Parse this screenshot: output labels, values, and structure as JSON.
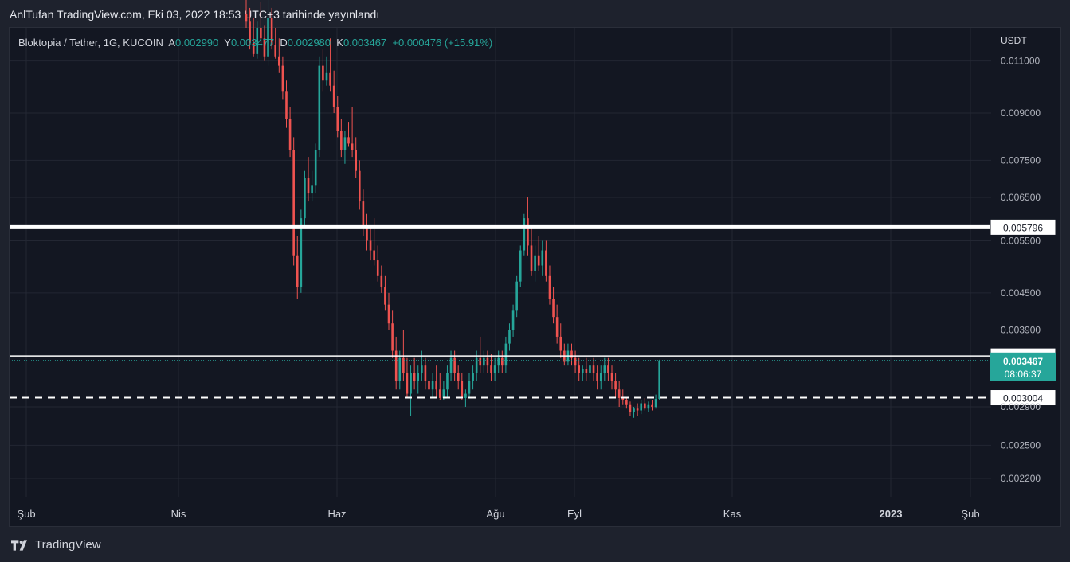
{
  "header": {
    "title": "AnlTufan TradingView.com, Eki 03, 2022 18:53 UTC+3 tarihinde yayınlandı"
  },
  "legend": {
    "symbol": "Bloktopia / Tether, 1G, KUCOIN",
    "open_label": "A",
    "open": "0.002990",
    "high_label": "Y",
    "high": "0.003477",
    "low_label": "D",
    "low": "0.002980",
    "close_label": "K",
    "close": "0.003467",
    "change": "+0.000476 (+15.91%)"
  },
  "footer": {
    "brand": "TradingView"
  },
  "colors": {
    "up": "#26a69a",
    "down": "#ef5350",
    "background": "#131722",
    "grid": "#232733",
    "level": "#ffffff"
  },
  "chart_data": {
    "type": "candlestick",
    "title": "Bloktopia / Tether, 1G, KUCOIN",
    "currency": "USDT",
    "y_scale": "log",
    "ylim": [
      0.00205,
      0.0125
    ],
    "y_ticks": [
      "0.011000",
      "0.009000",
      "0.007500",
      "0.006500",
      "0.005500",
      "0.004500",
      "0.003900",
      "0.002900",
      "0.002500",
      "0.002200"
    ],
    "x_ticks": [
      "Şub",
      "Nis",
      "Haz",
      "Ağu",
      "Eyl",
      "Kas",
      "2023",
      "Şub"
    ],
    "levels": [
      {
        "value": 0.005796,
        "label": "0.005796",
        "style": "solid-thick"
      },
      {
        "value": 0.003528,
        "label": "0.003528",
        "style": "solid"
      },
      {
        "value": 0.003004,
        "label": "0.003004",
        "style": "dashed"
      }
    ],
    "last_price": {
      "value": 0.003467,
      "label": "0.003467",
      "countdown": "08:06:37"
    },
    "candles": [
      {
        "o": 0.0132,
        "h": 0.0145,
        "l": 0.0125,
        "c": 0.0128
      },
      {
        "o": 0.0128,
        "h": 0.0135,
        "l": 0.0115,
        "c": 0.0118
      },
      {
        "o": 0.0118,
        "h": 0.013,
        "l": 0.0112,
        "c": 0.0113
      },
      {
        "o": 0.0113,
        "h": 0.0128,
        "l": 0.0111,
        "c": 0.0125
      },
      {
        "o": 0.0125,
        "h": 0.0138,
        "l": 0.0118,
        "c": 0.012
      },
      {
        "o": 0.012,
        "h": 0.0126,
        "l": 0.011,
        "c": 0.0112
      },
      {
        "o": 0.0112,
        "h": 0.014,
        "l": 0.0108,
        "c": 0.013
      },
      {
        "o": 0.013,
        "h": 0.0135,
        "l": 0.0115,
        "c": 0.0117
      },
      {
        "o": 0.0117,
        "h": 0.0125,
        "l": 0.0111,
        "c": 0.0112
      },
      {
        "o": 0.0112,
        "h": 0.012,
        "l": 0.0105,
        "c": 0.0108
      },
      {
        "o": 0.0108,
        "h": 0.0112,
        "l": 0.0095,
        "c": 0.0098
      },
      {
        "o": 0.0098,
        "h": 0.0102,
        "l": 0.0085,
        "c": 0.0088
      },
      {
        "o": 0.0088,
        "h": 0.0092,
        "l": 0.0076,
        "c": 0.0078
      },
      {
        "o": 0.0078,
        "h": 0.0082,
        "l": 0.005,
        "c": 0.0052
      },
      {
        "o": 0.0052,
        "h": 0.0056,
        "l": 0.0044,
        "c": 0.0046
      },
      {
        "o": 0.0046,
        "h": 0.0062,
        "l": 0.0045,
        "c": 0.006
      },
      {
        "o": 0.006,
        "h": 0.0072,
        "l": 0.0058,
        "c": 0.007
      },
      {
        "o": 0.007,
        "h": 0.0076,
        "l": 0.0064,
        "c": 0.0066
      },
      {
        "o": 0.0066,
        "h": 0.0072,
        "l": 0.0064,
        "c": 0.0068
      },
      {
        "o": 0.0068,
        "h": 0.008,
        "l": 0.0066,
        "c": 0.0078
      },
      {
        "o": 0.0078,
        "h": 0.0112,
        "l": 0.0076,
        "c": 0.0108
      },
      {
        "o": 0.0108,
        "h": 0.0115,
        "l": 0.0098,
        "c": 0.0102
      },
      {
        "o": 0.0102,
        "h": 0.0112,
        "l": 0.01,
        "c": 0.0105
      },
      {
        "o": 0.0105,
        "h": 0.012,
        "l": 0.0098,
        "c": 0.01
      },
      {
        "o": 0.01,
        "h": 0.0106,
        "l": 0.009,
        "c": 0.0092
      },
      {
        "o": 0.0092,
        "h": 0.0096,
        "l": 0.0082,
        "c": 0.0084
      },
      {
        "o": 0.0084,
        "h": 0.0088,
        "l": 0.0076,
        "c": 0.0078
      },
      {
        "o": 0.0078,
        "h": 0.0084,
        "l": 0.0074,
        "c": 0.0082
      },
      {
        "o": 0.0082,
        "h": 0.0087,
        "l": 0.0079,
        "c": 0.008
      },
      {
        "o": 0.008,
        "h": 0.0092,
        "l": 0.0076,
        "c": 0.0078
      },
      {
        "o": 0.0078,
        "h": 0.0082,
        "l": 0.007,
        "c": 0.0072
      },
      {
        "o": 0.0072,
        "h": 0.0075,
        "l": 0.0062,
        "c": 0.0064
      },
      {
        "o": 0.0064,
        "h": 0.0067,
        "l": 0.0056,
        "c": 0.0058
      },
      {
        "o": 0.0058,
        "h": 0.0061,
        "l": 0.0053,
        "c": 0.0055
      },
      {
        "o": 0.0055,
        "h": 0.0058,
        "l": 0.0051,
        "c": 0.0053
      },
      {
        "o": 0.0053,
        "h": 0.006,
        "l": 0.005,
        "c": 0.0051
      },
      {
        "o": 0.0051,
        "h": 0.0054,
        "l": 0.0047,
        "c": 0.0048
      },
      {
        "o": 0.0048,
        "h": 0.005,
        "l": 0.0045,
        "c": 0.0046
      },
      {
        "o": 0.0046,
        "h": 0.0048,
        "l": 0.0042,
        "c": 0.0043
      },
      {
        "o": 0.0043,
        "h": 0.0045,
        "l": 0.0039,
        "c": 0.004
      },
      {
        "o": 0.004,
        "h": 0.0042,
        "l": 0.0035,
        "c": 0.0036
      },
      {
        "o": 0.0036,
        "h": 0.0038,
        "l": 0.0031,
        "c": 0.0032
      },
      {
        "o": 0.0032,
        "h": 0.0036,
        "l": 0.0031,
        "c": 0.0035
      },
      {
        "o": 0.0035,
        "h": 0.0039,
        "l": 0.0032,
        "c": 0.0033
      },
      {
        "o": 0.0033,
        "h": 0.0035,
        "l": 0.003,
        "c": 0.00305
      },
      {
        "o": 0.00305,
        "h": 0.0034,
        "l": 0.0028,
        "c": 0.0033
      },
      {
        "o": 0.0033,
        "h": 0.0035,
        "l": 0.0031,
        "c": 0.0032
      },
      {
        "o": 0.0032,
        "h": 0.0034,
        "l": 0.00305,
        "c": 0.0033
      },
      {
        "o": 0.0033,
        "h": 0.0036,
        "l": 0.0032,
        "c": 0.0034
      },
      {
        "o": 0.0034,
        "h": 0.0035,
        "l": 0.0031,
        "c": 0.0032
      },
      {
        "o": 0.0032,
        "h": 0.0034,
        "l": 0.003,
        "c": 0.0031
      },
      {
        "o": 0.0031,
        "h": 0.0033,
        "l": 0.003,
        "c": 0.0032
      },
      {
        "o": 0.0032,
        "h": 0.0034,
        "l": 0.003,
        "c": 0.0031
      },
      {
        "o": 0.0031,
        "h": 0.0033,
        "l": 0.00298,
        "c": 0.003
      },
      {
        "o": 0.003,
        "h": 0.0032,
        "l": 0.00298,
        "c": 0.0031
      },
      {
        "o": 0.0031,
        "h": 0.0034,
        "l": 0.003,
        "c": 0.0033
      },
      {
        "o": 0.0033,
        "h": 0.0036,
        "l": 0.0032,
        "c": 0.0035
      },
      {
        "o": 0.0035,
        "h": 0.0036,
        "l": 0.0032,
        "c": 0.0033
      },
      {
        "o": 0.0033,
        "h": 0.0034,
        "l": 0.0031,
        "c": 0.0032
      },
      {
        "o": 0.0032,
        "h": 0.0033,
        "l": 0.00298,
        "c": 0.003
      },
      {
        "o": 0.003,
        "h": 0.0031,
        "l": 0.0029,
        "c": 0.00305
      },
      {
        "o": 0.00305,
        "h": 0.0033,
        "l": 0.003,
        "c": 0.0032
      },
      {
        "o": 0.0032,
        "h": 0.0034,
        "l": 0.0031,
        "c": 0.0033
      },
      {
        "o": 0.0033,
        "h": 0.0036,
        "l": 0.0032,
        "c": 0.0035
      },
      {
        "o": 0.0035,
        "h": 0.0038,
        "l": 0.0033,
        "c": 0.0034
      },
      {
        "o": 0.0034,
        "h": 0.0036,
        "l": 0.0033,
        "c": 0.0035
      },
      {
        "o": 0.0035,
        "h": 0.0036,
        "l": 0.0033,
        "c": 0.0034
      },
      {
        "o": 0.0034,
        "h": 0.00355,
        "l": 0.0032,
        "c": 0.0033
      },
      {
        "o": 0.0033,
        "h": 0.0035,
        "l": 0.0032,
        "c": 0.0034
      },
      {
        "o": 0.0034,
        "h": 0.0036,
        "l": 0.0033,
        "c": 0.0035
      },
      {
        "o": 0.0035,
        "h": 0.0036,
        "l": 0.0033,
        "c": 0.0034
      },
      {
        "o": 0.0034,
        "h": 0.0038,
        "l": 0.0033,
        "c": 0.0037
      },
      {
        "o": 0.0037,
        "h": 0.004,
        "l": 0.0036,
        "c": 0.0039
      },
      {
        "o": 0.0039,
        "h": 0.0043,
        "l": 0.0038,
        "c": 0.0042
      },
      {
        "o": 0.0042,
        "h": 0.0048,
        "l": 0.0041,
        "c": 0.0047
      },
      {
        "o": 0.0047,
        "h": 0.0054,
        "l": 0.0046,
        "c": 0.0053
      },
      {
        "o": 0.0053,
        "h": 0.0061,
        "l": 0.0052,
        "c": 0.006
      },
      {
        "o": 0.006,
        "h": 0.0065,
        "l": 0.0052,
        "c": 0.0054
      },
      {
        "o": 0.0054,
        "h": 0.0058,
        "l": 0.0048,
        "c": 0.0049
      },
      {
        "o": 0.0049,
        "h": 0.0054,
        "l": 0.0047,
        "c": 0.0052
      },
      {
        "o": 0.0052,
        "h": 0.0056,
        "l": 0.0049,
        "c": 0.005
      },
      {
        "o": 0.005,
        "h": 0.0055,
        "l": 0.0048,
        "c": 0.0053
      },
      {
        "o": 0.0053,
        "h": 0.0055,
        "l": 0.0047,
        "c": 0.0048
      },
      {
        "o": 0.0048,
        "h": 0.005,
        "l": 0.0043,
        "c": 0.0044
      },
      {
        "o": 0.0044,
        "h": 0.0046,
        "l": 0.004,
        "c": 0.0041
      },
      {
        "o": 0.0041,
        "h": 0.0043,
        "l": 0.0037,
        "c": 0.0038
      },
      {
        "o": 0.0038,
        "h": 0.004,
        "l": 0.0035,
        "c": 0.0036
      },
      {
        "o": 0.0036,
        "h": 0.0037,
        "l": 0.0034,
        "c": 0.00345
      },
      {
        "o": 0.00345,
        "h": 0.0037,
        "l": 0.0034,
        "c": 0.0036
      },
      {
        "o": 0.0036,
        "h": 0.0037,
        "l": 0.0034,
        "c": 0.0035
      },
      {
        "o": 0.0035,
        "h": 0.0036,
        "l": 0.0033,
        "c": 0.0034
      },
      {
        "o": 0.0034,
        "h": 0.0035,
        "l": 0.0032,
        "c": 0.0033
      },
      {
        "o": 0.0033,
        "h": 0.0034,
        "l": 0.0032,
        "c": 0.00335
      },
      {
        "o": 0.00335,
        "h": 0.0035,
        "l": 0.0032,
        "c": 0.0033
      },
      {
        "o": 0.0033,
        "h": 0.0034,
        "l": 0.0032,
        "c": 0.0034
      },
      {
        "o": 0.0034,
        "h": 0.0035,
        "l": 0.0032,
        "c": 0.0033
      },
      {
        "o": 0.0033,
        "h": 0.0034,
        "l": 0.0031,
        "c": 0.0032
      },
      {
        "o": 0.0032,
        "h": 0.0034,
        "l": 0.0031,
        "c": 0.0033
      },
      {
        "o": 0.0033,
        "h": 0.0035,
        "l": 0.0032,
        "c": 0.0034
      },
      {
        "o": 0.0034,
        "h": 0.0035,
        "l": 0.0032,
        "c": 0.0033
      },
      {
        "o": 0.0033,
        "h": 0.0034,
        "l": 0.0031,
        "c": 0.0032
      },
      {
        "o": 0.0032,
        "h": 0.0033,
        "l": 0.003,
        "c": 0.0031
      },
      {
        "o": 0.0031,
        "h": 0.0032,
        "l": 0.0029,
        "c": 0.003
      },
      {
        "o": 0.003,
        "h": 0.0031,
        "l": 0.00292,
        "c": 0.00298
      },
      {
        "o": 0.00298,
        "h": 0.003,
        "l": 0.00288,
        "c": 0.00292
      },
      {
        "o": 0.00292,
        "h": 0.00296,
        "l": 0.0028,
        "c": 0.00284
      },
      {
        "o": 0.00284,
        "h": 0.0029,
        "l": 0.00278,
        "c": 0.00288
      },
      {
        "o": 0.00288,
        "h": 0.00294,
        "l": 0.0028,
        "c": 0.00286
      },
      {
        "o": 0.00286,
        "h": 0.00298,
        "l": 0.00282,
        "c": 0.00294
      },
      {
        "o": 0.00294,
        "h": 0.003,
        "l": 0.00286,
        "c": 0.00288
      },
      {
        "o": 0.00288,
        "h": 0.00296,
        "l": 0.00284,
        "c": 0.00292
      },
      {
        "o": 0.00292,
        "h": 0.00298,
        "l": 0.00286,
        "c": 0.0029
      },
      {
        "o": 0.0029,
        "h": 0.00304,
        "l": 0.00288,
        "c": 0.00299
      },
      {
        "o": 0.00299,
        "h": 0.003477,
        "l": 0.00298,
        "c": 0.003467
      }
    ]
  }
}
